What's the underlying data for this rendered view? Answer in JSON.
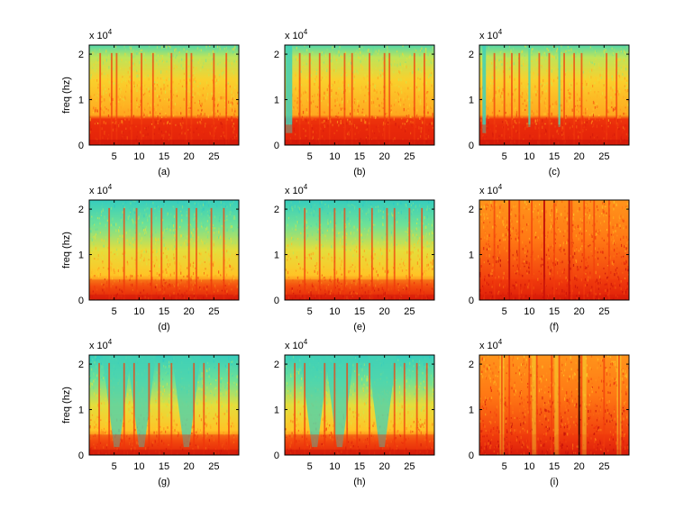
{
  "chart_data": [
    {
      "type": "heatmap",
      "panel_label": "(a)",
      "ylabel": "freq (hz)",
      "exponent_label": "x 10",
      "exponent": "4",
      "xticks": [
        "5",
        "10",
        "15",
        "20",
        "25"
      ],
      "yticks": [
        "0",
        "1",
        "2"
      ],
      "xlim": [
        0,
        30
      ],
      "ylim": [
        0,
        2.2
      ],
      "y_scale_note": "x 10^4",
      "profile": {
        "background": "mixed-yellow-red",
        "top_color": "#3cd6a8",
        "cool_fraction": 0.15,
        "band_strength": 0.9,
        "stripes": [
          2.2,
          4.5,
          5.5,
          8.5,
          10.5,
          12.8,
          16.5,
          19.5,
          20.5,
          25,
          27.5
        ],
        "dark_stripes": []
      }
    },
    {
      "type": "heatmap",
      "panel_label": "(b)",
      "ylabel": "",
      "exponent_label": "x 10",
      "exponent": "4",
      "xticks": [
        "5",
        "10",
        "15",
        "20",
        "25"
      ],
      "yticks": [
        "0",
        "1",
        "2"
      ],
      "xlim": [
        0,
        30
      ],
      "ylim": [
        0,
        2.2
      ],
      "profile": {
        "background": "mixed-yellow-red",
        "top_color": "#3cd6a8",
        "cool_fraction": 0.2,
        "band_strength": 0.9,
        "stripes": [
          3,
          5,
          7,
          9,
          12,
          13.5,
          17,
          20,
          21,
          26,
          28
        ],
        "dark_stripes": [],
        "cool_column": [
          0.2,
          1.5
        ]
      }
    },
    {
      "type": "heatmap",
      "panel_label": "(c)",
      "ylabel": "",
      "exponent_label": "x 10",
      "exponent": "4",
      "xticks": [
        "5",
        "10",
        "15",
        "20",
        "25"
      ],
      "yticks": [
        "0",
        "1",
        "2"
      ],
      "xlim": [
        0,
        30
      ],
      "ylim": [
        0,
        2.2
      ],
      "profile": {
        "background": "mixed-yellow-red",
        "top_color": "#3cd6a8",
        "cool_fraction": 0.15,
        "band_strength": 0.9,
        "stripes": [
          3,
          5,
          6.5,
          8,
          12,
          14,
          17,
          19,
          20.5,
          25.5,
          27.5
        ],
        "dark_stripes": [],
        "cool_column": [
          0.6,
          1.3
        ],
        "cool_stripes": [
          10,
          16
        ]
      }
    },
    {
      "type": "heatmap",
      "panel_label": "(d)",
      "ylabel": "freq (hz)",
      "exponent_label": "x 10",
      "exponent": "4",
      "xticks": [
        "5",
        "10",
        "15",
        "20",
        "25"
      ],
      "yticks": [
        "0",
        "1",
        "2"
      ],
      "xlim": [
        0,
        30
      ],
      "ylim": [
        0,
        2.2
      ],
      "profile": {
        "background": "mixed-yellow-green",
        "top_color": "#3cd6a8",
        "cool_fraction": 0.45,
        "band_strength": 0.6,
        "stripes": [
          4,
          7,
          9.5,
          12.5,
          14.5,
          17.5,
          20,
          21.5,
          24.5,
          27
        ],
        "dark_stripes": []
      }
    },
    {
      "type": "heatmap",
      "panel_label": "(e)",
      "ylabel": "",
      "exponent_label": "x 10",
      "exponent": "4",
      "xticks": [
        "5",
        "10",
        "15",
        "20",
        "25"
      ],
      "yticks": [
        "0",
        "1",
        "2"
      ],
      "xlim": [
        0,
        30
      ],
      "ylim": [
        0,
        2.2
      ],
      "profile": {
        "background": "mixed-yellow-green",
        "top_color": "#3cd6a8",
        "cool_fraction": 0.55,
        "band_strength": 0.6,
        "stripes": [
          4,
          7,
          10,
          12,
          15,
          17.5,
          20.5,
          22,
          25,
          27.5
        ],
        "dark_stripes": []
      }
    },
    {
      "type": "heatmap",
      "panel_label": "(f)",
      "ylabel": "",
      "exponent_label": "x 10",
      "exponent": "4",
      "xticks": [
        "5",
        "10",
        "15",
        "20",
        "25"
      ],
      "yticks": [
        "0",
        "1",
        "2"
      ],
      "xlim": [
        0,
        30
      ],
      "ylim": [
        0,
        2.2
      ],
      "profile": {
        "background": "mostly-red",
        "top_color": "#ff6a00",
        "cool_fraction": 0.0,
        "band_strength": 0.4,
        "stripes": [
          3,
          6,
          8,
          10.5,
          13,
          15,
          18.5,
          21,
          23,
          26
        ],
        "dark_stripes": [
          6,
          13,
          18
        ]
      }
    },
    {
      "type": "heatmap",
      "panel_label": "(g)",
      "ylabel": "freq (hz)",
      "exponent_label": "x 10",
      "exponent": "4",
      "xticks": [
        "5",
        "10",
        "15",
        "20",
        "25"
      ],
      "yticks": [
        "0",
        "1",
        "2"
      ],
      "xlim": [
        0,
        30
      ],
      "ylim": [
        0,
        2.2
      ],
      "profile": {
        "background": "yellow-green-vfans",
        "top_color": "#3cd6a8",
        "cool_fraction": 0.5,
        "band_strength": 0.8,
        "stripes": [
          2,
          4,
          7,
          9,
          12,
          14,
          16.5,
          21,
          23,
          26,
          28
        ],
        "dark_stripes": [],
        "cool_valleys": [
          5.5,
          10.5,
          19.5
        ]
      }
    },
    {
      "type": "heatmap",
      "panel_label": "(h)",
      "ylabel": "",
      "exponent_label": "x 10",
      "exponent": "4",
      "xticks": [
        "5",
        "10",
        "15",
        "20",
        "25"
      ],
      "yticks": [
        "0",
        "1",
        "2"
      ],
      "xlim": [
        0,
        30
      ],
      "ylim": [
        0,
        2.2
      ],
      "profile": {
        "background": "yellow-green-vfans",
        "top_color": "#2ad2c0",
        "cool_fraction": 0.6,
        "band_strength": 0.8,
        "stripes": [
          2,
          4,
          8,
          10,
          12.5,
          14.5,
          17,
          22,
          24,
          26.5,
          28.5
        ],
        "dark_stripes": [],
        "cool_valleys": [
          6,
          11,
          19.5
        ]
      }
    },
    {
      "type": "heatmap",
      "panel_label": "(i)",
      "ylabel": "",
      "exponent_label": "x 10",
      "exponent": "4",
      "xticks": [
        "5",
        "10",
        "15",
        "20",
        "25"
      ],
      "yticks": [
        "0",
        "1",
        "2"
      ],
      "xlim": [
        0,
        30
      ],
      "ylim": [
        0,
        2.2
      ],
      "profile": {
        "background": "mostly-red-with-yellow-columns",
        "top_color": "#ff6a00",
        "cool_fraction": 0.0,
        "band_strength": 0.3,
        "stripes": [
          4.5,
          6,
          10,
          11.5,
          14.5,
          16,
          20.5,
          25,
          28
        ],
        "dark_stripes": [
          20
        ],
        "yellow_columns": [
          4.5,
          11,
          15.5,
          21,
          28
        ]
      }
    }
  ]
}
